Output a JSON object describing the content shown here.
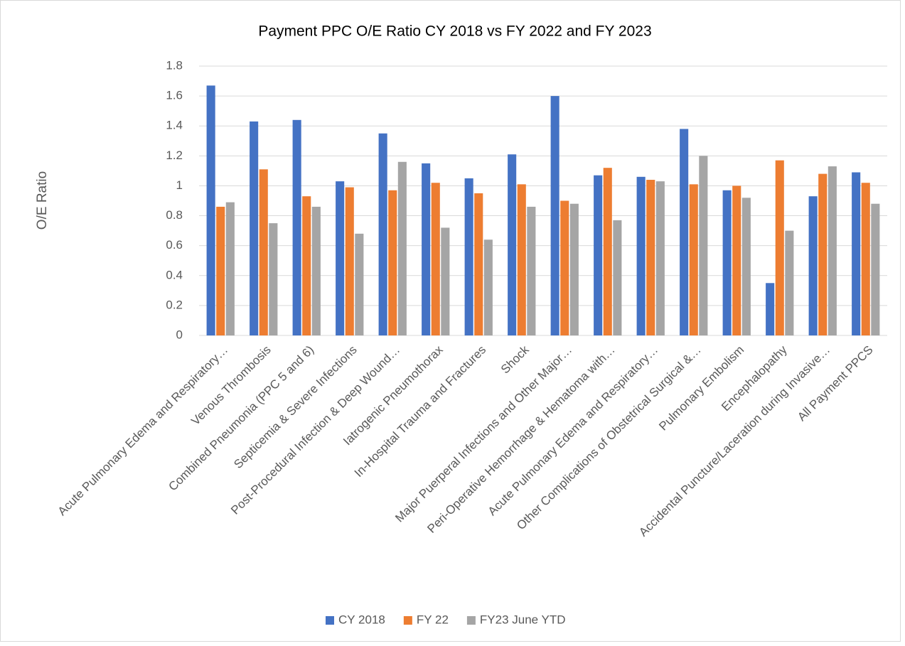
{
  "chart_data": {
    "type": "bar",
    "title": "Payment PPC O/E Ratio CY 2018 vs FY 2022 and FY 2023",
    "y_label": "O/E Ratio",
    "categories": [
      "Acute Pulmonary Edema and Respiratory…",
      "Venous Thrombosis",
      "Combined Pneumonia (PPC 5 and 6)",
      "Septicemia & Severe Infections",
      "Post-Procedural Infection & Deep Wound…",
      "Iatrogenic Pneumothorax",
      "In-Hospital Trauma and Fractures",
      "Shock",
      "Major Puerperal Infections and Other Major…",
      "Peri-Operative Hemorrhage & Hematoma with…",
      "Acute Pulmonary Edema and Respiratory…",
      "Other Complications of Obstetrical Surgical &…",
      "Pulmonary Embolism",
      "Encephalopathy",
      "Accidental Puncture/Laceration during Invasive…",
      "All Payment PPCS"
    ],
    "series": [
      {
        "name": "CY 2018",
        "color": "#4472c4",
        "values": [
          1.67,
          1.43,
          1.44,
          1.03,
          1.35,
          1.15,
          1.05,
          1.21,
          1.6,
          1.07,
          1.06,
          1.38,
          0.97,
          0.35,
          0.93,
          1.09
        ]
      },
      {
        "name": "FY 22",
        "color": "#ed7d31",
        "values": [
          0.86,
          1.11,
          0.93,
          0.99,
          0.97,
          1.02,
          0.95,
          1.01,
          0.9,
          1.12,
          1.04,
          1.01,
          1.0,
          1.17,
          1.08,
          1.02
        ]
      },
      {
        "name": "FY23 June YTD",
        "color": "#a5a5a5",
        "values": [
          0.89,
          0.75,
          0.86,
          0.68,
          1.16,
          0.72,
          0.64,
          0.86,
          0.88,
          0.77,
          1.03,
          1.2,
          0.92,
          0.7,
          1.13,
          0.88
        ]
      }
    ],
    "ylim": [
      0,
      1.8
    ],
    "yticks": [
      0,
      0.2,
      0.4,
      0.6,
      0.8,
      1,
      1.2,
      1.4,
      1.6,
      1.8
    ],
    "grid": true,
    "legend": "bottom"
  }
}
